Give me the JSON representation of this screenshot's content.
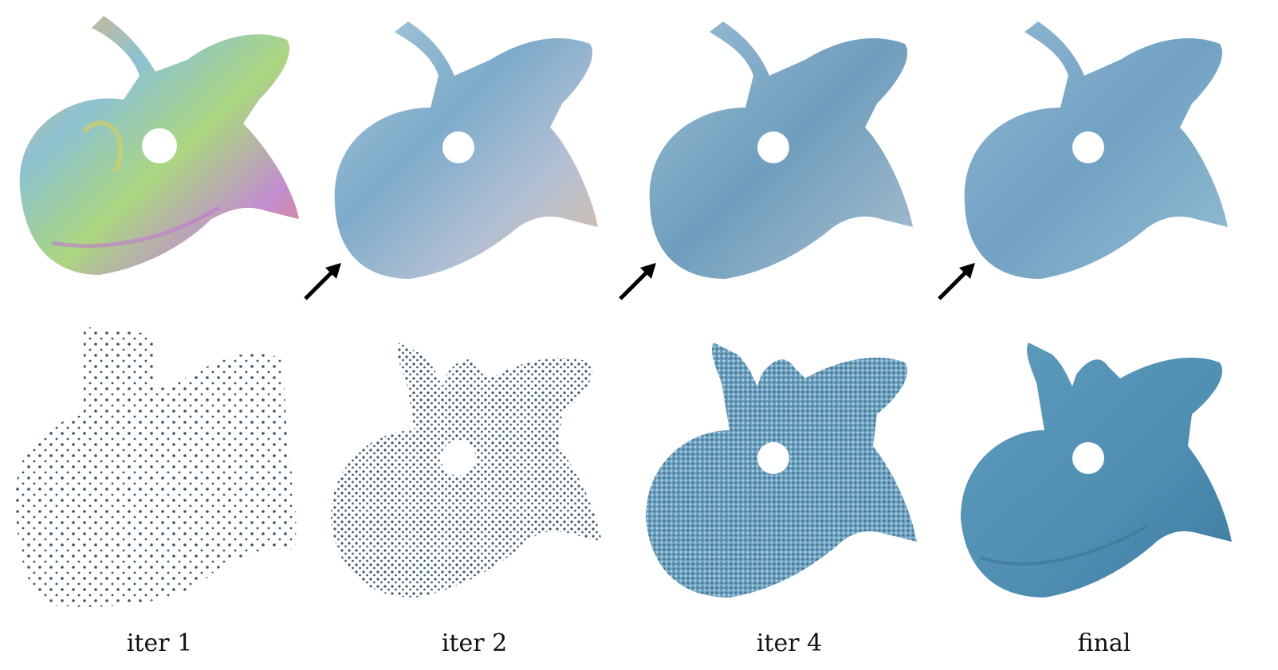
{
  "columns": [
    {
      "label": "iter 1"
    },
    {
      "label": "iter 2"
    },
    {
      "label": "iter 4"
    },
    {
      "label": "final"
    }
  ],
  "colors": {
    "surface_blue": "#4f8fb2",
    "point_dark": "#3b5566",
    "arrow": "#000000",
    "background": "#ffffff"
  },
  "icons": [
    "arrow-icon"
  ]
}
